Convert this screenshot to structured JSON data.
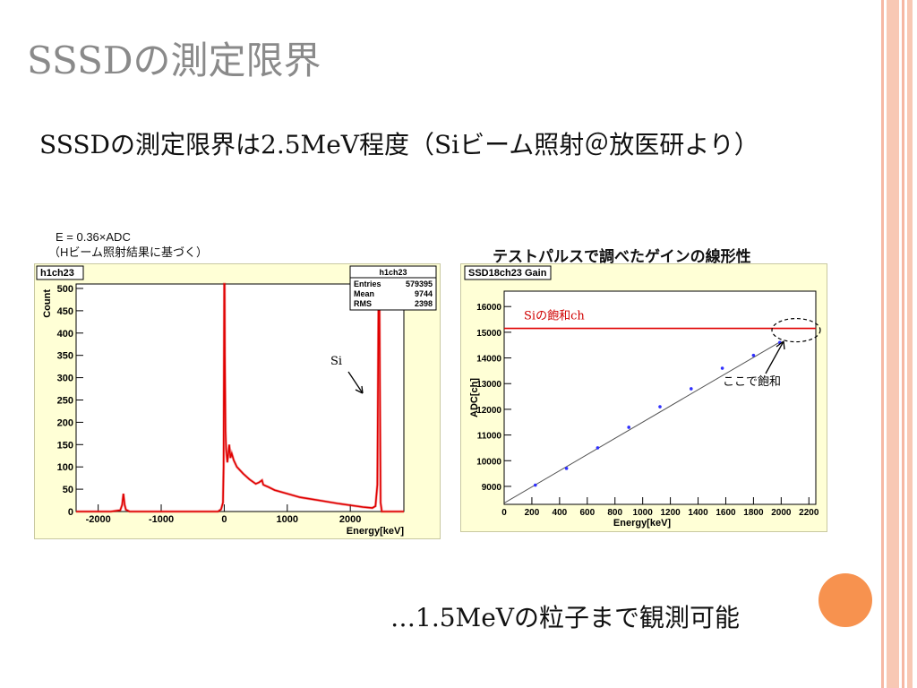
{
  "slide": {
    "title": "SSSDの測定限界",
    "subtitle": "SSSDの測定限界は2.5MeV程度（Siビーム照射＠放医研より）",
    "note_line1": "E = 0.36×ADC",
    "note_line2": "（Hビーム照射結果に基づく）",
    "right_panel_title": "テストパルスで調べたゲインの線形性",
    "conclusion": "…1.5MeVの粒子まで観測可能",
    "accent_color": "#f7924f",
    "stripe_color": "#f6b8a4"
  },
  "chart_data": [
    {
      "type": "line",
      "frame_label": "h1ch23",
      "xlabel": "Energy[keV]",
      "ylabel": "Count",
      "xlim": [
        -2350,
        2850
      ],
      "ylim": [
        0,
        510
      ],
      "x_ticks": [
        -2000,
        -1000,
        0,
        1000,
        2000
      ],
      "y_ticks": [
        0,
        50,
        100,
        150,
        200,
        250,
        300,
        350,
        400,
        450,
        500
      ],
      "stats": {
        "title": "h1ch23",
        "rows": [
          {
            "label": "Entries",
            "value": "579395"
          },
          {
            "label": "Mean",
            "value": "9744"
          },
          {
            "label": "RMS",
            "value": "2398"
          }
        ]
      },
      "annotation": "Si",
      "line_color": "#e00000",
      "series": [
        {
          "x": [
            -2350,
            -1800,
            -1650,
            -1620,
            -1600,
            -1580,
            -1560,
            -1500,
            -100,
            -50,
            -20,
            -10,
            0,
            5,
            10,
            20,
            30,
            50,
            80,
            100,
            120,
            150,
            200,
            300,
            400,
            500,
            550,
            600,
            620,
            650,
            700,
            800,
            1000,
            1200,
            1500,
            1800,
            2000,
            2200,
            2350,
            2400,
            2430,
            2450,
            2460,
            2480,
            2500,
            2850
          ],
          "y": [
            0,
            0,
            3,
            15,
            40,
            15,
            4,
            0,
            0,
            5,
            20,
            100,
            520,
            520,
            350,
            180,
            140,
            110,
            150,
            120,
            130,
            115,
            100,
            85,
            72,
            62,
            65,
            70,
            60,
            58,
            55,
            48,
            40,
            32,
            25,
            18,
            14,
            10,
            8,
            12,
            60,
            520,
            520,
            20,
            0,
            0
          ]
        }
      ]
    },
    {
      "type": "scatter",
      "frame_label": "SSD18ch23 Gain",
      "xlabel": "Energy[keV]",
      "ylabel": "ADC[ch]",
      "xlim": [
        0,
        2250
      ],
      "ylim": [
        8300,
        16600
      ],
      "x_ticks": [
        0,
        200,
        400,
        600,
        800,
        1000,
        1200,
        1400,
        1600,
        1800,
        2000,
        2200
      ],
      "y_ticks": [
        9000,
        10000,
        11000,
        12000,
        13000,
        14000,
        15000,
        16000
      ],
      "saturation_label": "Siの飽和ch",
      "saturation_value": 15150,
      "saturation_annotation": "ここで飽和",
      "point_color": "#3030ff",
      "fit_line": {
        "x": [
          0,
          2000
        ],
        "y": [
          8350,
          14650
        ]
      },
      "series": [
        {
          "x": [
            225,
            450,
            675,
            900,
            1125,
            1350,
            1575,
            1800,
            1990
          ],
          "y": [
            9050,
            9700,
            10500,
            11300,
            12100,
            12800,
            13600,
            14100,
            14600
          ]
        }
      ]
    }
  ]
}
